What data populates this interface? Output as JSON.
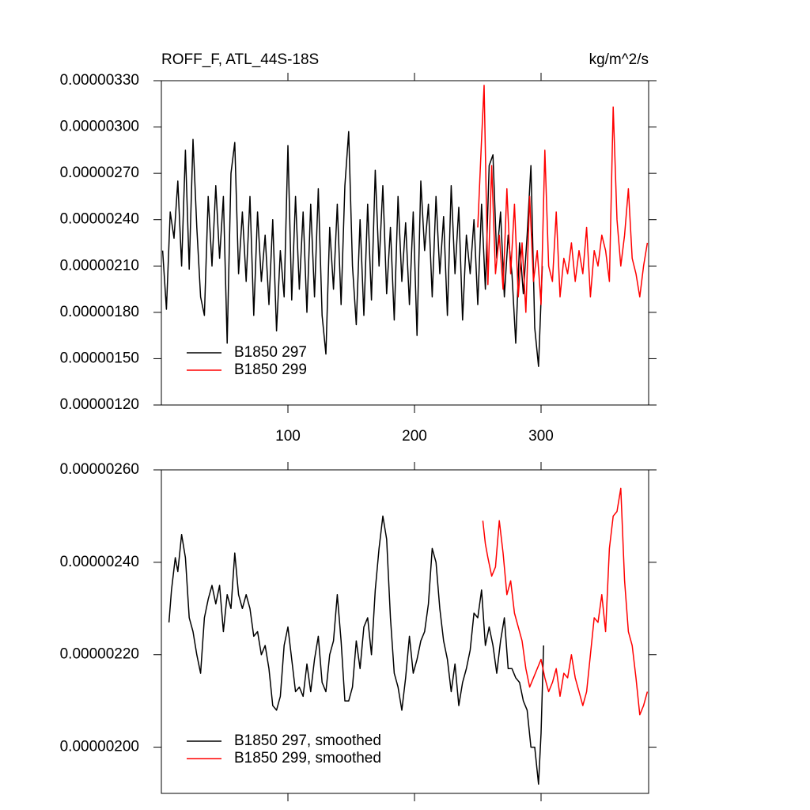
{
  "chart_data": [
    {
      "type": "line",
      "title": "ROFF_F, ATL_44S-18S",
      "units": "kg/m^2/s",
      "xlim": [
        0,
        385
      ],
      "xticks": [
        100,
        200,
        300
      ],
      "ylim": [
        1.2e-06,
        3.3e-06
      ],
      "yticks": [
        {
          "value": 1.2e-06,
          "label": "0.00000120"
        },
        {
          "value": 1.5e-06,
          "label": "0.00000150"
        },
        {
          "value": 1.8e-06,
          "label": "0.00000180"
        },
        {
          "value": 2.1e-06,
          "label": "0.00000210"
        },
        {
          "value": 2.4e-06,
          "label": "0.00000240"
        },
        {
          "value": 2.7e-06,
          "label": "0.00000270"
        },
        {
          "value": 3e-06,
          "label": "0.00000300"
        },
        {
          "value": 3.3e-06,
          "label": "0.00000330"
        }
      ],
      "legend": "lower left",
      "series": [
        {
          "name": "B1850 297",
          "color": "#000000",
          "x": [
            1,
            4,
            7,
            10,
            13,
            16,
            19,
            22,
            25,
            28,
            31,
            34,
            37,
            40,
            43,
            46,
            49,
            52,
            55,
            58,
            61,
            64,
            67,
            70,
            73,
            76,
            79,
            82,
            85,
            88,
            91,
            94,
            97,
            100,
            103,
            106,
            109,
            112,
            115,
            118,
            121,
            124,
            127,
            130,
            133,
            136,
            139,
            142,
            145,
            148,
            151,
            154,
            157,
            160,
            163,
            166,
            169,
            172,
            175,
            178,
            181,
            184,
            187,
            190,
            193,
            196,
            199,
            202,
            205,
            208,
            211,
            214,
            217,
            220,
            223,
            226,
            229,
            232,
            235,
            238,
            241,
            244,
            247,
            250,
            253,
            256,
            259,
            262,
            265,
            268,
            271,
            274,
            277,
            280,
            283,
            286,
            289,
            292,
            295,
            298,
            301
          ],
          "values": [
            2.2e-06,
            1.82e-06,
            2.45e-06,
            2.28e-06,
            2.65e-06,
            2.1e-06,
            2.85e-06,
            2.08e-06,
            2.92e-06,
            2.35e-06,
            1.9e-06,
            1.78e-06,
            2.55e-06,
            2.1e-06,
            2.62e-06,
            2.15e-06,
            2.55e-06,
            1.6e-06,
            2.7e-06,
            2.9e-06,
            2.05e-06,
            2.45e-06,
            2e-06,
            2.55e-06,
            1.78e-06,
            2.45e-06,
            2e-06,
            2.3e-06,
            1.85e-06,
            2.4e-06,
            1.68e-06,
            2.2e-06,
            1.9e-06,
            2.88e-06,
            1.88e-06,
            2.55e-06,
            1.95e-06,
            2.45e-06,
            1.8e-06,
            2.5e-06,
            1.9e-06,
            2.6e-06,
            1.78e-06,
            1.53e-06,
            2.35e-06,
            1.95e-06,
            2.5e-06,
            1.85e-06,
            2.62e-06,
            2.97e-06,
            2.1e-06,
            1.72e-06,
            2.4e-06,
            1.78e-06,
            2.5e-06,
            1.88e-06,
            2.72e-06,
            2.1e-06,
            2.62e-06,
            1.92e-06,
            2.35e-06,
            1.75e-06,
            2.55e-06,
            2e-06,
            2.38e-06,
            1.85e-06,
            2.45e-06,
            1.65e-06,
            2.65e-06,
            2.2e-06,
            2.5e-06,
            1.9e-06,
            2.55e-06,
            2.05e-06,
            2.42e-06,
            1.78e-06,
            2.62e-06,
            2.05e-06,
            2.48e-06,
            1.75e-06,
            2.3e-06,
            2.05e-06,
            2.4e-06,
            1.85e-06,
            2.5e-06,
            1.95e-06,
            2.75e-06,
            2.82e-06,
            2.15e-06,
            2.45e-06,
            1.9e-06,
            2.3e-06,
            2.05e-06,
            1.6e-06,
            2.25e-06,
            1.92e-06,
            2.3e-06,
            2.75e-06,
            1.7e-06,
            1.45e-06,
            2.1e-06
          ]
        },
        {
          "name": "B1850 299",
          "color": "#ff0000",
          "x": [
            250,
            253,
            255,
            258,
            261,
            264,
            267,
            270,
            273,
            276,
            279,
            282,
            285,
            288,
            291,
            294,
            297,
            300,
            303,
            306,
            309,
            312,
            315,
            318,
            321,
            324,
            327,
            330,
            333,
            336,
            339,
            342,
            345,
            348,
            351,
            354,
            357,
            360,
            363,
            366,
            369,
            372,
            375,
            378,
            381,
            384
          ],
          "values": [
            2.35e-06,
            2.92e-06,
            3.27e-06,
            1.98e-06,
            2.75e-06,
            2.05e-06,
            2.3e-06,
            1.95e-06,
            2.6e-06,
            2.05e-06,
            2.5e-06,
            1.9e-06,
            2.25e-06,
            1.8e-06,
            2.55e-06,
            2e-06,
            2.2e-06,
            1.85e-06,
            2.85e-06,
            2.1e-06,
            2e-06,
            2.45e-06,
            1.9e-06,
            2.15e-06,
            2.05e-06,
            2.25e-06,
            2e-06,
            2.2e-06,
            2.05e-06,
            2.35e-06,
            1.9e-06,
            2.2e-06,
            2.1e-06,
            2.3e-06,
            2.2e-06,
            2e-06,
            3.13e-06,
            2.4e-06,
            2.1e-06,
            2.3e-06,
            2.6e-06,
            2.15e-06,
            2.05e-06,
            1.9e-06,
            2.1e-06,
            2.25e-06
          ]
        }
      ]
    },
    {
      "type": "line",
      "xlim": [
        0,
        385
      ],
      "ylim": [
        1.9e-06,
        2.6e-06
      ],
      "yticks": [
        {
          "value": 2e-06,
          "label": "0.00000200"
        },
        {
          "value": 2.2e-06,
          "label": "0.00000220"
        },
        {
          "value": 2.4e-06,
          "label": "0.00000240"
        },
        {
          "value": 2.6e-06,
          "label": "0.00000260"
        }
      ],
      "legend": "lower left",
      "series": [
        {
          "name": "B1850 297, smoothed",
          "color": "#000000",
          "x": [
            6,
            8,
            11,
            13,
            16,
            19,
            22,
            25,
            28,
            31,
            34,
            37,
            40,
            43,
            46,
            49,
            52,
            55,
            58,
            61,
            64,
            67,
            70,
            73,
            76,
            79,
            82,
            85,
            88,
            91,
            94,
            97,
            100,
            103,
            106,
            109,
            112,
            115,
            118,
            121,
            124,
            127,
            130,
            133,
            136,
            139,
            142,
            145,
            148,
            151,
            154,
            157,
            160,
            163,
            166,
            169,
            172,
            175,
            178,
            181,
            184,
            187,
            190,
            193,
            196,
            199,
            202,
            205,
            208,
            211,
            214,
            217,
            220,
            223,
            226,
            229,
            232,
            235,
            238,
            241,
            244,
            247,
            250,
            253,
            256,
            259,
            262,
            265,
            268,
            271,
            274,
            277,
            280,
            283,
            286,
            289,
            292,
            295,
            298,
            300,
            302
          ],
          "values": [
            2.27e-06,
            2.34e-06,
            2.41e-06,
            2.38e-06,
            2.46e-06,
            2.41e-06,
            2.28e-06,
            2.25e-06,
            2.2e-06,
            2.16e-06,
            2.28e-06,
            2.32e-06,
            2.35e-06,
            2.31e-06,
            2.35e-06,
            2.25e-06,
            2.33e-06,
            2.3e-06,
            2.42e-06,
            2.33e-06,
            2.3e-06,
            2.33e-06,
            2.3e-06,
            2.24e-06,
            2.25e-06,
            2.2e-06,
            2.22e-06,
            2.17e-06,
            2.09e-06,
            2.08e-06,
            2.11e-06,
            2.22e-06,
            2.26e-06,
            2.19e-06,
            2.12e-06,
            2.13e-06,
            2.11e-06,
            2.18e-06,
            2.12e-06,
            2.19e-06,
            2.24e-06,
            2.14e-06,
            2.12e-06,
            2.2e-06,
            2.23e-06,
            2.33e-06,
            2.23e-06,
            2.1e-06,
            2.1e-06,
            2.13e-06,
            2.23e-06,
            2.17e-06,
            2.26e-06,
            2.28e-06,
            2.2e-06,
            2.34e-06,
            2.43e-06,
            2.5e-06,
            2.45e-06,
            2.28e-06,
            2.16e-06,
            2.13e-06,
            2.08e-06,
            2.15e-06,
            2.24e-06,
            2.16e-06,
            2.19e-06,
            2.23e-06,
            2.25e-06,
            2.31e-06,
            2.43e-06,
            2.4e-06,
            2.3e-06,
            2.23e-06,
            2.19e-06,
            2.12e-06,
            2.18e-06,
            2.09e-06,
            2.14e-06,
            2.17e-06,
            2.21e-06,
            2.29e-06,
            2.28e-06,
            2.34e-06,
            2.22e-06,
            2.26e-06,
            2.22e-06,
            2.16e-06,
            2.23e-06,
            2.28e-06,
            2.17e-06,
            2.17e-06,
            2.15e-06,
            2.14e-06,
            2.1e-06,
            2.08e-06,
            2e-06,
            2e-06,
            1.92e-06,
            2.03e-06,
            2.22e-06
          ]
        },
        {
          "name": "B1850 299, smoothed",
          "color": "#ff0000",
          "x": [
            254,
            256,
            258,
            261,
            264,
            267,
            270,
            273,
            276,
            279,
            282,
            285,
            288,
            291,
            294,
            297,
            300,
            303,
            306,
            309,
            312,
            315,
            318,
            321,
            324,
            327,
            330,
            333,
            336,
            339,
            342,
            345,
            348,
            351,
            354,
            357,
            360,
            363,
            366,
            369,
            372,
            375,
            378,
            381,
            384
          ],
          "values": [
            2.49e-06,
            2.44e-06,
            2.41e-06,
            2.37e-06,
            2.39e-06,
            2.49e-06,
            2.42e-06,
            2.33e-06,
            2.36e-06,
            2.29e-06,
            2.26e-06,
            2.23e-06,
            2.17e-06,
            2.13e-06,
            2.15e-06,
            2.17e-06,
            2.19e-06,
            2.15e-06,
            2.12e-06,
            2.14e-06,
            2.17e-06,
            2.11e-06,
            2.16e-06,
            2.15e-06,
            2.2e-06,
            2.15e-06,
            2.12e-06,
            2.09e-06,
            2.12e-06,
            2.2e-06,
            2.28e-06,
            2.27e-06,
            2.33e-06,
            2.25e-06,
            2.43e-06,
            2.5e-06,
            2.51e-06,
            2.56e-06,
            2.36e-06,
            2.25e-06,
            2.22e-06,
            2.15e-06,
            2.07e-06,
            2.09e-06,
            2.12e-06
          ]
        }
      ]
    }
  ]
}
